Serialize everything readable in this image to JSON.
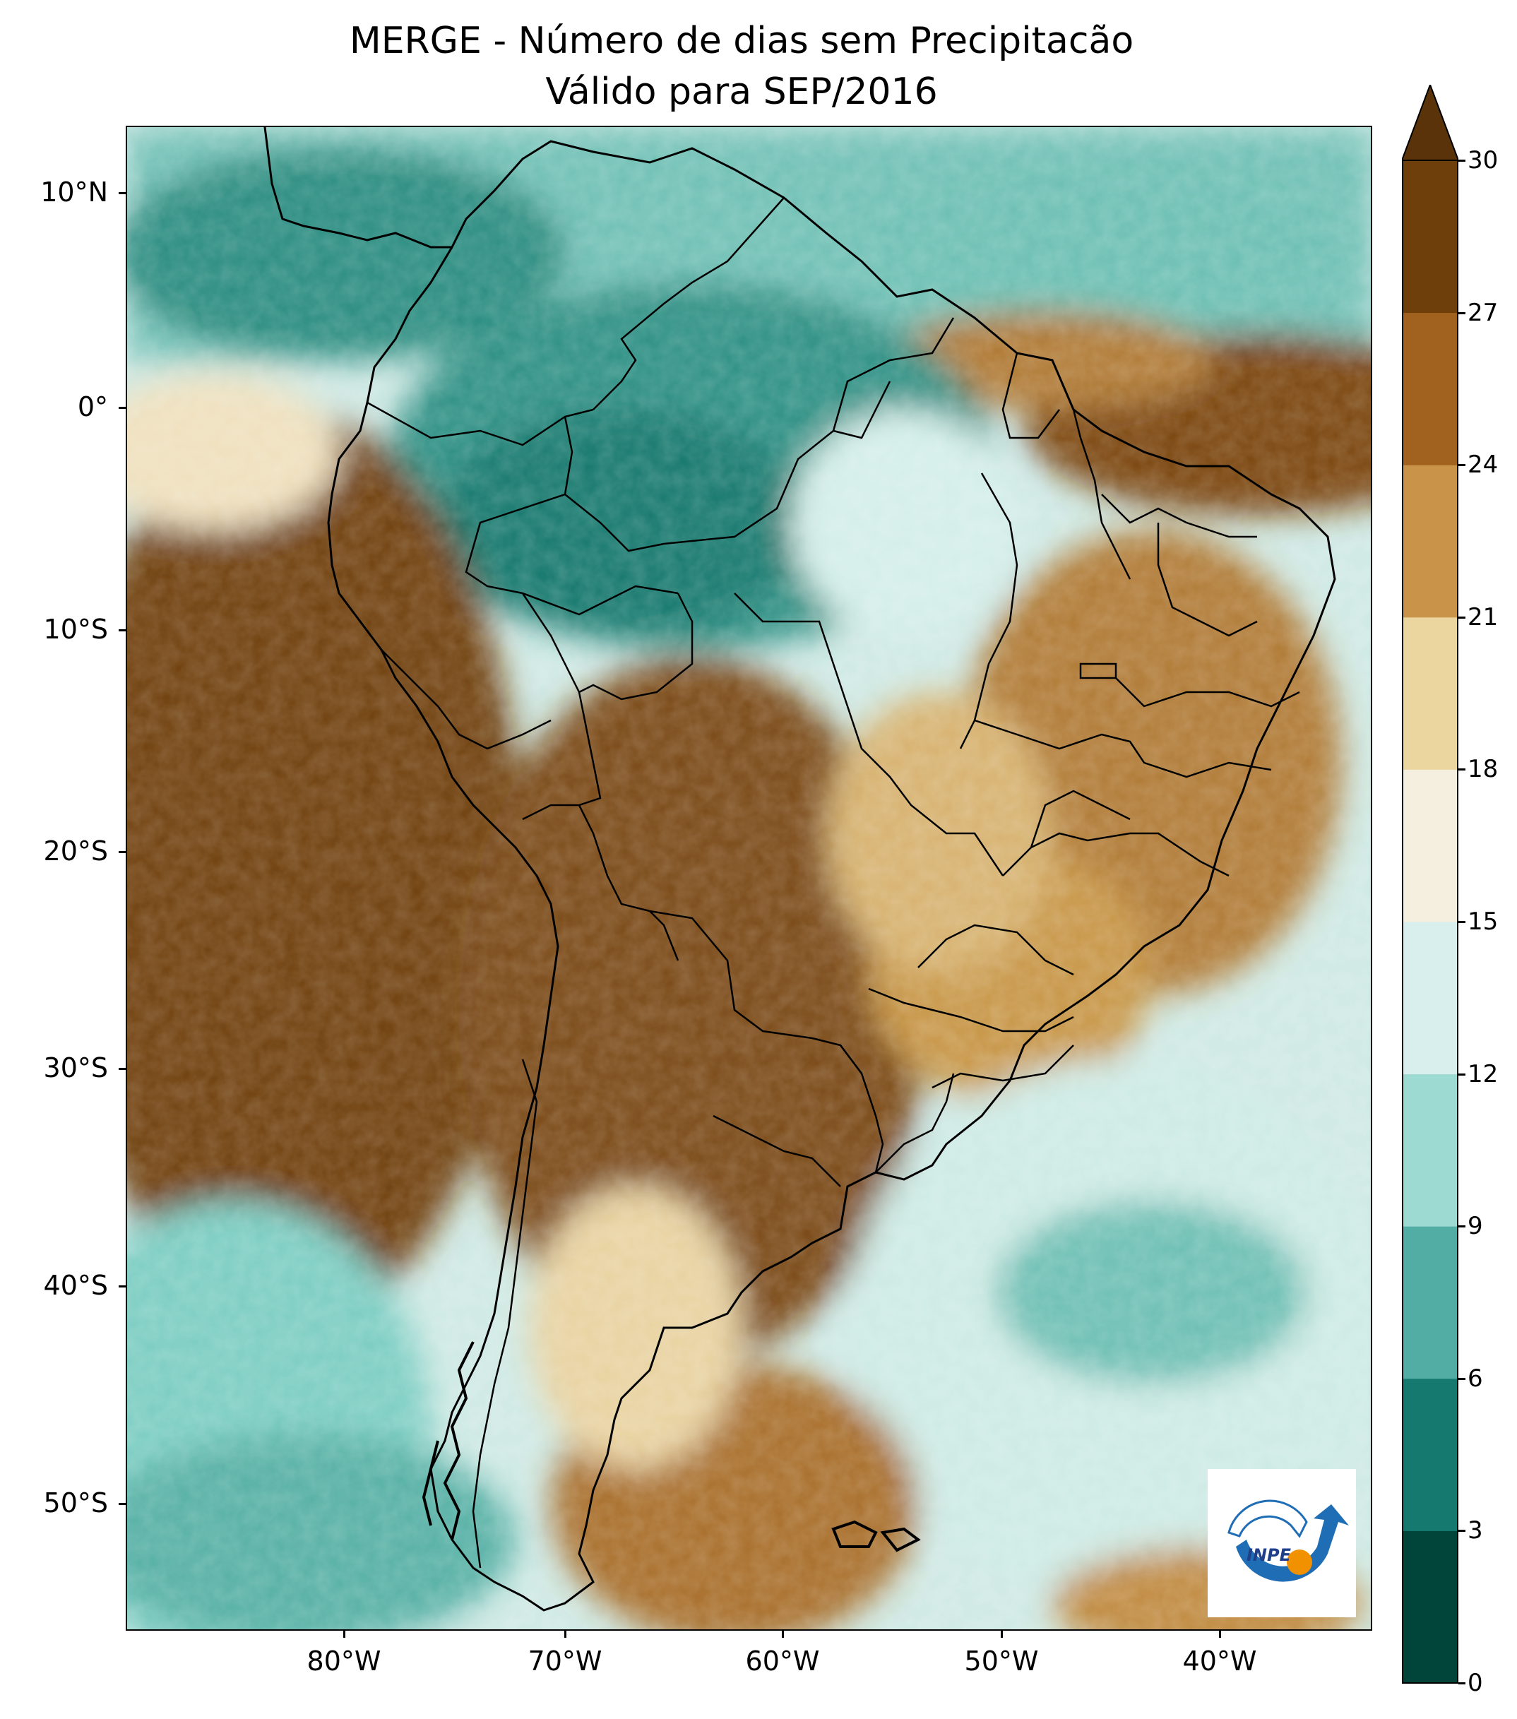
{
  "title": {
    "line1": "MERGE - Número de dias sem Precipitacão",
    "line2": "Válido para SEP/2016"
  },
  "axes": {
    "lat_labels": [
      "10°N",
      "0°",
      "10°S",
      "20°S",
      "30°S",
      "40°S",
      "50°S"
    ],
    "lon_labels": [
      "80°W",
      "70°W",
      "60°W",
      "50°W",
      "40°W"
    ]
  },
  "colorbar": {
    "tick_labels": [
      "0",
      "3",
      "6",
      "9",
      "12",
      "15",
      "18",
      "21",
      "24",
      "27",
      "30"
    ],
    "colors": [
      "#01453a",
      "#16796f",
      "#52aea4",
      "#9ddad1",
      "#d8efed",
      "#f5efe0",
      "#ecd6a0",
      "#c99449",
      "#a2621f",
      "#6e3f0b"
    ],
    "extend_color": "#5a330a"
  },
  "logo": {
    "text": "INPE"
  }
}
